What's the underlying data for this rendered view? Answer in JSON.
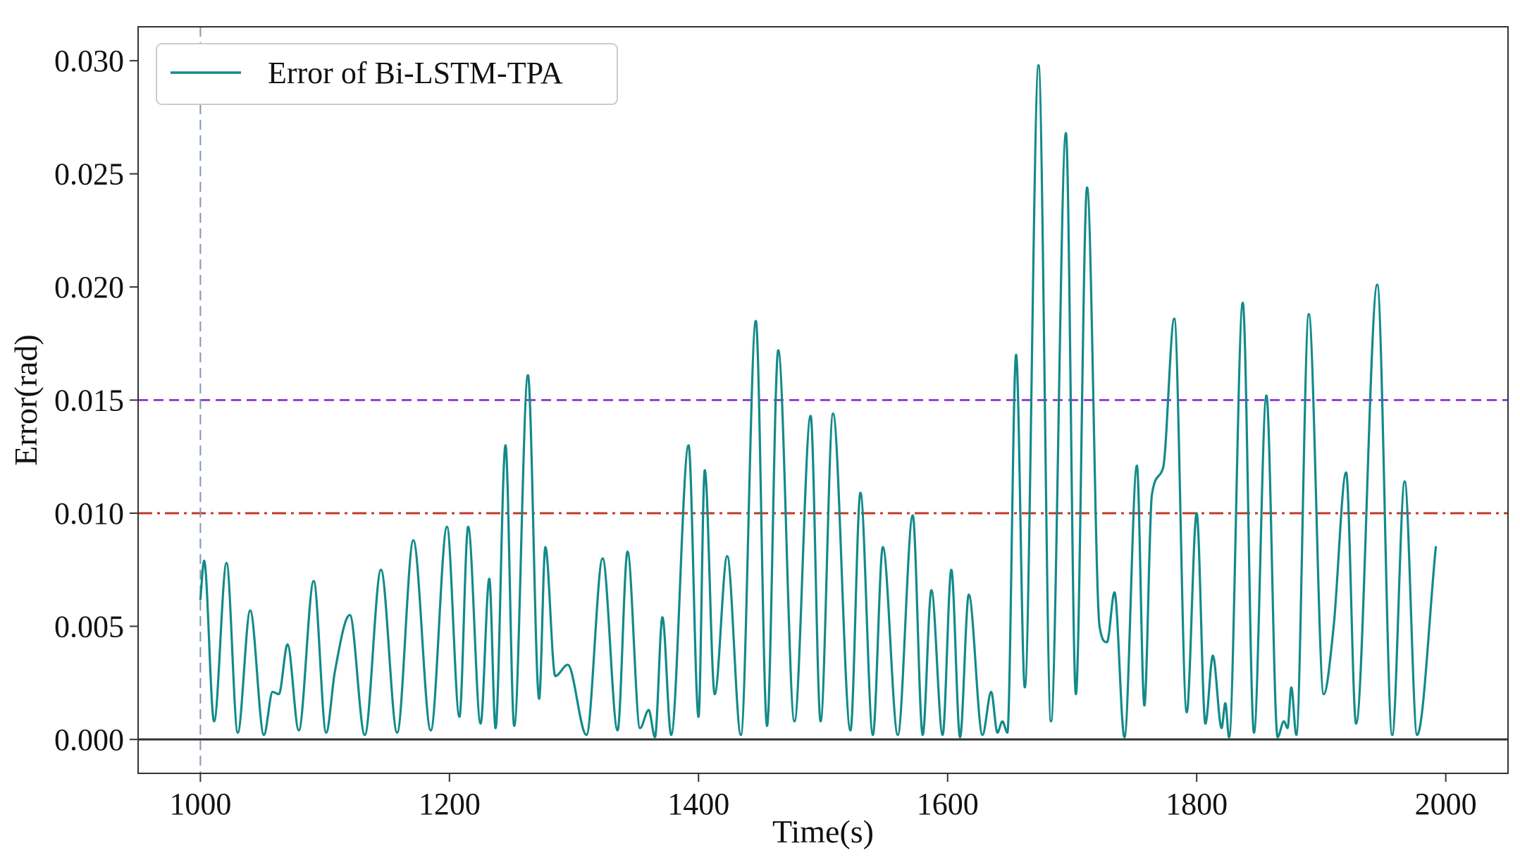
{
  "chart_data": {
    "type": "line",
    "title": "",
    "xlabel": "Time(s)",
    "ylabel": "Error(rad)",
    "xlim": [
      950,
      2050
    ],
    "ylim": [
      -0.0015,
      0.0315
    ],
    "xticks": [
      1000,
      1200,
      1400,
      1600,
      1800,
      2000
    ],
    "xtick_labels": [
      "1000",
      "1200",
      "1400",
      "1600",
      "1800",
      "2000"
    ],
    "yticks": [
      0.0,
      0.005,
      0.01,
      0.015,
      0.02,
      0.025,
      0.03
    ],
    "ytick_labels": [
      "0.000",
      "0.005",
      "0.010",
      "0.015",
      "0.020",
      "0.025",
      "0.030"
    ],
    "grid": false,
    "legend_position": "top-left",
    "series": [
      {
        "name": "Error of Bi-LSTM-TPA",
        "color": "#138a8a",
        "peaks": [
          [
            1000,
            0.0062
          ],
          [
            1003,
            0.0079
          ],
          [
            1011,
            0.0008
          ],
          [
            1021,
            0.0078
          ],
          [
            1030,
            0.0003
          ],
          [
            1040,
            0.0057
          ],
          [
            1051,
            0.0002
          ],
          [
            1058,
            0.0021
          ],
          [
            1063,
            0.002
          ],
          [
            1070,
            0.0042
          ],
          [
            1079,
            0.0004
          ],
          [
            1091,
            0.007
          ],
          [
            1101,
            0.0003
          ],
          [
            1108,
            0.003
          ],
          [
            1120,
            0.0055
          ],
          [
            1132,
            0.0002
          ],
          [
            1145,
            0.0075
          ],
          [
            1158,
            0.0003
          ],
          [
            1171,
            0.0088
          ],
          [
            1185,
            0.0004
          ],
          [
            1198,
            0.0094
          ],
          [
            1208,
            0.001
          ],
          [
            1215,
            0.0094
          ],
          [
            1225,
            0.0007
          ],
          [
            1232,
            0.0071
          ],
          [
            1237,
            0.0005
          ],
          [
            1245,
            0.013
          ],
          [
            1252,
            0.0006
          ],
          [
            1263,
            0.0161
          ],
          [
            1272,
            0.0018
          ],
          [
            1277,
            0.0085
          ],
          [
            1285,
            0.0028
          ],
          [
            1295,
            0.0033
          ],
          [
            1310,
            0.0002
          ],
          [
            1323,
            0.008
          ],
          [
            1335,
            0.0004
          ],
          [
            1343,
            0.0083
          ],
          [
            1353,
            0.0005
          ],
          [
            1360,
            0.0013
          ],
          [
            1365,
            0.0001
          ],
          [
            1371,
            0.0054
          ],
          [
            1378,
            0.0002
          ],
          [
            1392,
            0.013
          ],
          [
            1400,
            0.001
          ],
          [
            1405,
            0.0119
          ],
          [
            1413,
            0.002
          ],
          [
            1423,
            0.0081
          ],
          [
            1434,
            0.0002
          ],
          [
            1446,
            0.0185
          ],
          [
            1455,
            0.0006
          ],
          [
            1464,
            0.0172
          ],
          [
            1477,
            0.0008
          ],
          [
            1490,
            0.0143
          ],
          [
            1498,
            0.0008
          ],
          [
            1508,
            0.0144
          ],
          [
            1522,
            0.0004
          ],
          [
            1530,
            0.0109
          ],
          [
            1540,
            0.0002
          ],
          [
            1548,
            0.0085
          ],
          [
            1560,
            0.0002
          ],
          [
            1572,
            0.0099
          ],
          [
            1580,
            0.0002
          ],
          [
            1587,
            0.0066
          ],
          [
            1596,
            0.0002
          ],
          [
            1603,
            0.0075
          ],
          [
            1610,
            0.0001
          ],
          [
            1617,
            0.0064
          ],
          [
            1628,
            0.0002
          ],
          [
            1635,
            0.0021
          ],
          [
            1640,
            0.0003
          ],
          [
            1644,
            0.0008
          ],
          [
            1648,
            0.0003
          ],
          [
            1655,
            0.017
          ],
          [
            1662,
            0.0023
          ],
          [
            1673,
            0.0298
          ],
          [
            1683,
            0.0008
          ],
          [
            1695,
            0.0268
          ],
          [
            1703,
            0.002
          ],
          [
            1712,
            0.0244
          ],
          [
            1722,
            0.005
          ],
          [
            1728,
            0.0043
          ],
          [
            1734,
            0.0065
          ],
          [
            1742,
            0.0001
          ],
          [
            1752,
            0.0121
          ],
          [
            1758,
            0.0015
          ],
          [
            1764,
            0.0108
          ],
          [
            1773,
            0.012
          ],
          [
            1782,
            0.0186
          ],
          [
            1792,
            0.0012
          ],
          [
            1800,
            0.01
          ],
          [
            1807,
            0.0007
          ],
          [
            1813,
            0.0037
          ],
          [
            1820,
            0.0005
          ],
          [
            1823,
            0.0016
          ],
          [
            1826,
            0.0001
          ],
          [
            1837,
            0.0193
          ],
          [
            1846,
            0.0003
          ],
          [
            1856,
            0.0152
          ],
          [
            1865,
            0.0001
          ],
          [
            1870,
            0.0008
          ],
          [
            1873,
            0.0005
          ],
          [
            1876,
            0.0023
          ],
          [
            1880,
            0.0002
          ],
          [
            1890,
            0.0188
          ],
          [
            1902,
            0.002
          ],
          [
            1910,
            0.005
          ],
          [
            1920,
            0.0118
          ],
          [
            1928,
            0.0007
          ],
          [
            1945,
            0.0201
          ],
          [
            1957,
            0.0002
          ],
          [
            1967,
            0.0114
          ],
          [
            1977,
            0.0002
          ],
          [
            1992,
            0.0085
          ]
        ]
      }
    ],
    "annotations": [
      {
        "kind": "hline",
        "y": 0.015,
        "style": "dashed",
        "color": "#9b3fd6"
      },
      {
        "kind": "hline",
        "y": 0.01,
        "style": "dashdot",
        "color": "#c0392b"
      },
      {
        "kind": "hline",
        "y": 0.0,
        "style": "solid",
        "color": "#333333"
      },
      {
        "kind": "vline",
        "x": 1000,
        "style": "dashed",
        "color": "#7f97ad"
      }
    ]
  }
}
